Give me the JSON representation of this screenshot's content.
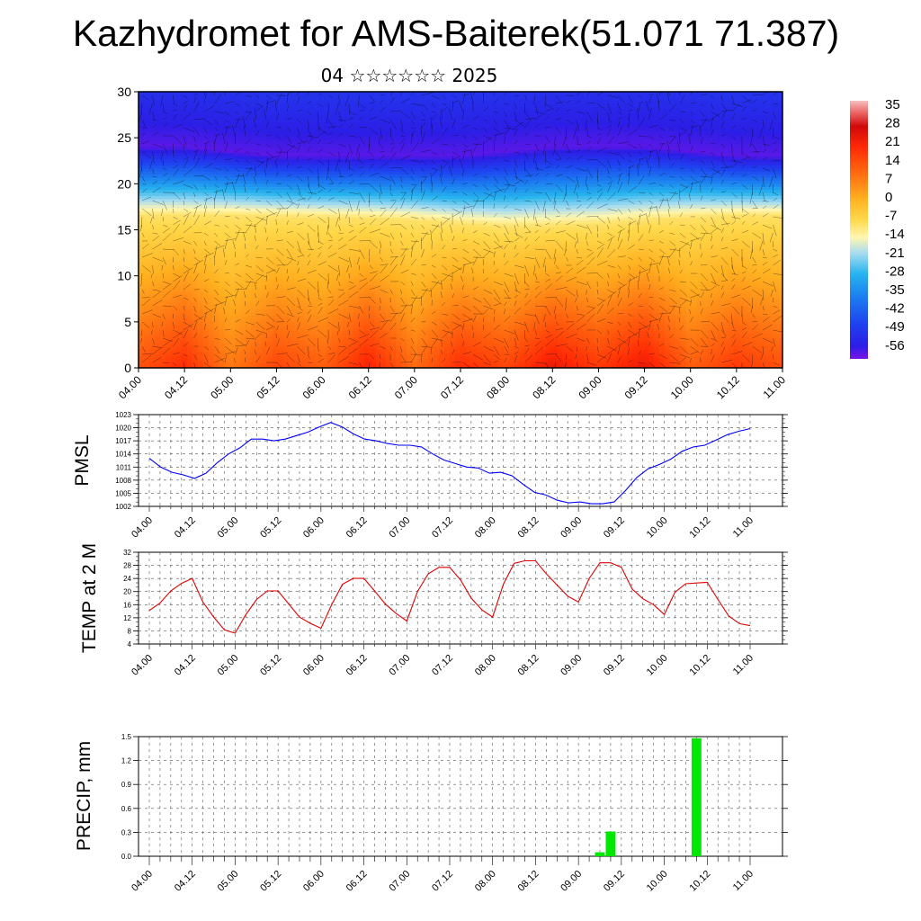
{
  "title": "Kazhydromet for AMS-Baiterek(51.071 71.387)",
  "subtitle": "04 ☆☆☆☆☆☆ 2025",
  "time_ticks": [
    "04.00",
    "04.12",
    "05.00",
    "05.12",
    "06.00",
    "06.12",
    "07.00",
    "07.12",
    "08.00",
    "08.12",
    "09.00",
    "09.12",
    "10.00",
    "10.12",
    "11.00"
  ],
  "chart_data": [
    {
      "type": "heatmap",
      "description_key": "vertical cross-section of temperature with wind vectors",
      "x_range": [
        "04.00",
        "11.00"
      ],
      "ylim": [
        0,
        30
      ],
      "yticks": [
        0,
        5,
        10,
        15,
        20,
        25,
        30
      ],
      "colorbar": {
        "labels": [
          35,
          28,
          21,
          14,
          7,
          0,
          -7,
          -14,
          -21,
          -28,
          -35,
          -42,
          -49,
          -56
        ],
        "range": [
          -60,
          38
        ]
      },
      "surface_temp_by_time": [
        16,
        22,
        10,
        18,
        14,
        24,
        12,
        22,
        18,
        26,
        20,
        26,
        14,
        20,
        16
      ],
      "freezing_level": [
        16.5,
        16.5,
        16.5,
        16.4,
        16.3,
        16.2,
        16.0,
        15.6,
        15.3,
        15.4,
        15.6,
        16.0,
        16.3,
        16.5,
        16.5
      ],
      "tropopause_level": [
        24,
        24,
        23.5,
        23,
        23,
        23,
        23,
        23,
        23.5,
        24,
        24,
        24,
        23.5,
        23,
        23
      ]
    },
    {
      "type": "line",
      "ylabel": "PMSL",
      "ylim": [
        1002,
        1023
      ],
      "yticks": [
        1002,
        1005,
        1008,
        1011,
        1014,
        1017,
        1020,
        1023
      ],
      "color": "#0000ff",
      "values": [
        1013.0,
        1011.0,
        1009.8,
        1009.2,
        1008.4,
        1009.6,
        1012.0,
        1014.0,
        1015.4,
        1017.4,
        1017.4,
        1017.0,
        1017.4,
        1018.2,
        1019.0,
        1020.2,
        1021.2,
        1020.2,
        1018.6,
        1017.4,
        1017.0,
        1016.4,
        1016.0,
        1016.0,
        1015.6,
        1014.0,
        1012.6,
        1011.8,
        1011.0,
        1010.8,
        1009.6,
        1009.8,
        1009.0,
        1007.0,
        1005.2,
        1004.6,
        1003.4,
        1002.8,
        1003.0,
        1002.6,
        1002.6,
        1003.0,
        1005.6,
        1008.6,
        1010.6,
        1011.6,
        1012.8,
        1014.6,
        1015.6,
        1016.0,
        1017.2,
        1018.4,
        1019.2,
        1019.8
      ]
    },
    {
      "type": "line",
      "ylabel": "TEMP at 2 M",
      "ylim": [
        4,
        32
      ],
      "yticks": [
        4,
        8,
        12,
        16,
        20,
        24,
        28,
        32
      ],
      "color": "#e00000",
      "values": [
        14.2,
        16.5,
        20.2,
        22.5,
        24.0,
        16.8,
        12.2,
        8.3,
        7.3,
        13.0,
        17.6,
        20.2,
        20.2,
        16.2,
        12.2,
        10.3,
        8.8,
        16.0,
        22.2,
        24.0,
        24.0,
        20.2,
        16.2,
        13.3,
        11.0,
        20.0,
        25.4,
        27.4,
        27.4,
        23.6,
        18.0,
        14.4,
        12.2,
        22.2,
        28.6,
        29.4,
        29.4,
        25.4,
        22.0,
        18.6,
        16.8,
        24.0,
        28.8,
        28.8,
        27.4,
        20.8,
        17.8,
        16.0,
        13.0,
        19.8,
        22.4,
        22.6,
        22.8,
        17.6,
        12.6,
        10.2,
        9.6
      ]
    },
    {
      "type": "bar",
      "ylabel": "PRECIP, mm",
      "ylim": [
        0,
        1.5
      ],
      "yticks": [
        "0.0",
        "0.3",
        "0.6",
        "0.9",
        "1.2",
        "1.5"
      ],
      "color": "#00e800",
      "bars": [
        {
          "x": "09.06",
          "value": 0.05
        },
        {
          "x": "09.09",
          "value": 0.31
        },
        {
          "x": "10.09",
          "value": 1.48
        }
      ]
    }
  ]
}
